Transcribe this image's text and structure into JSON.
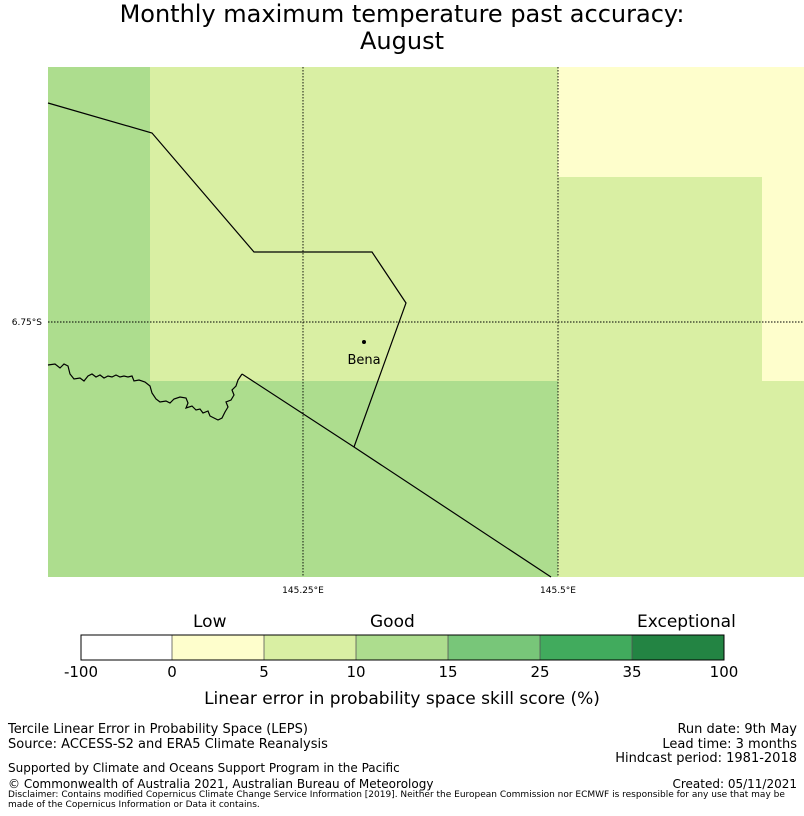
{
  "title": {
    "line1": "Monthly maximum temperature past accuracy:",
    "line2": "August"
  },
  "map": {
    "place_label": "Bena",
    "lat_labels": [
      "6.75°S"
    ],
    "lon_labels": [
      "145.25°E",
      "145.5°E"
    ],
    "colors": {
      "low": "#fefecc",
      "good_low": "#d9efa3",
      "good": "#addd8e",
      "exceptional": "#238443"
    }
  },
  "colorbar": {
    "category_labels": [
      "Low",
      "Good",
      "Exceptional"
    ],
    "ticks": [
      "-100",
      "0",
      "5",
      "10",
      "15",
      "25",
      "35",
      "100"
    ],
    "colors": [
      "#ffffff",
      "#fefecc",
      "#d9efa3",
      "#addd8e",
      "#78c679",
      "#41ab5d",
      "#238443"
    ],
    "label": "Linear error in probability space skill score (%)"
  },
  "footer": {
    "left1": "Tercile Linear Error in Probability Space (LEPS)",
    "left2": "Source: ACCESS-S2 and ERA5 Climate Reanalysis",
    "supported": "Supported by Climate and Oceans Support Program in the Pacific",
    "copyright": "© Commonwealth of Australia 2021, Australian Bureau of Meteorology",
    "run_date": "Run date: 9th May",
    "lead_time": "Lead time: 3 months",
    "hindcast": "Hindcast period: 1981-2018",
    "created": "Created: 05/11/2021",
    "disclaimer": "Disclaimer: Contains modified Copernicus Climate Change Service Information [2019]. Neither the European Commission nor ECMWF is responsible for any use that may be made of the Copernicus Information or Data it contains."
  }
}
